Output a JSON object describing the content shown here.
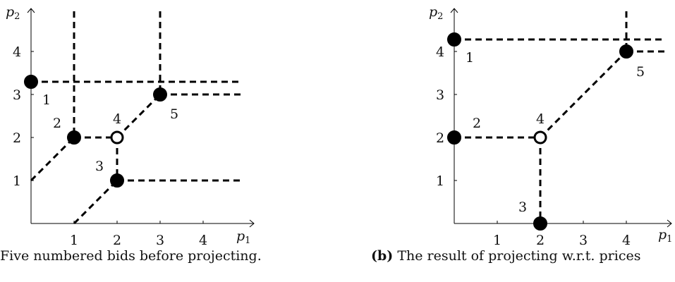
{
  "figures": {
    "a": {
      "axis_x_label": "p",
      "axis_x_sub": "1",
      "axis_y_label": "p",
      "axis_y_sub": "2",
      "x_ticks": [
        "1",
        "2",
        "3",
        "4"
      ],
      "y_ticks": [
        "1",
        "2",
        "3",
        "4"
      ],
      "caption_text": "Five numbered bids before projecting.",
      "points": [
        {
          "label": "1",
          "x": 0,
          "y": 3.3,
          "filled": true
        },
        {
          "label": "2",
          "x": 1,
          "y": 2,
          "filled": true
        },
        {
          "label": "3",
          "x": 2,
          "y": 1,
          "filled": true
        },
        {
          "label": "4",
          "x": 2,
          "y": 2,
          "filled": false
        },
        {
          "label": "5",
          "x": 3,
          "y": 3,
          "filled": true
        }
      ]
    },
    "b": {
      "axis_x_label": "p",
      "axis_x_sub": "1",
      "axis_y_label": "p",
      "axis_y_sub": "2",
      "x_ticks": [
        "1",
        "2",
        "3",
        "4"
      ],
      "y_ticks": [
        "1",
        "2",
        "3",
        "4"
      ],
      "caption_prefix": "(b)",
      "caption_text": "The result of projecting w.r.t. prices",
      "points": [
        {
          "label": "1",
          "x": 0,
          "y": 4.3,
          "filled": true
        },
        {
          "label": "2",
          "x": 0,
          "y": 2,
          "filled": true
        },
        {
          "label": "3",
          "x": 2,
          "y": 0,
          "filled": true
        },
        {
          "label": "4",
          "x": 2,
          "y": 2,
          "filled": false
        },
        {
          "label": "5",
          "x": 4,
          "y": 4,
          "filled": true
        }
      ]
    }
  }
}
